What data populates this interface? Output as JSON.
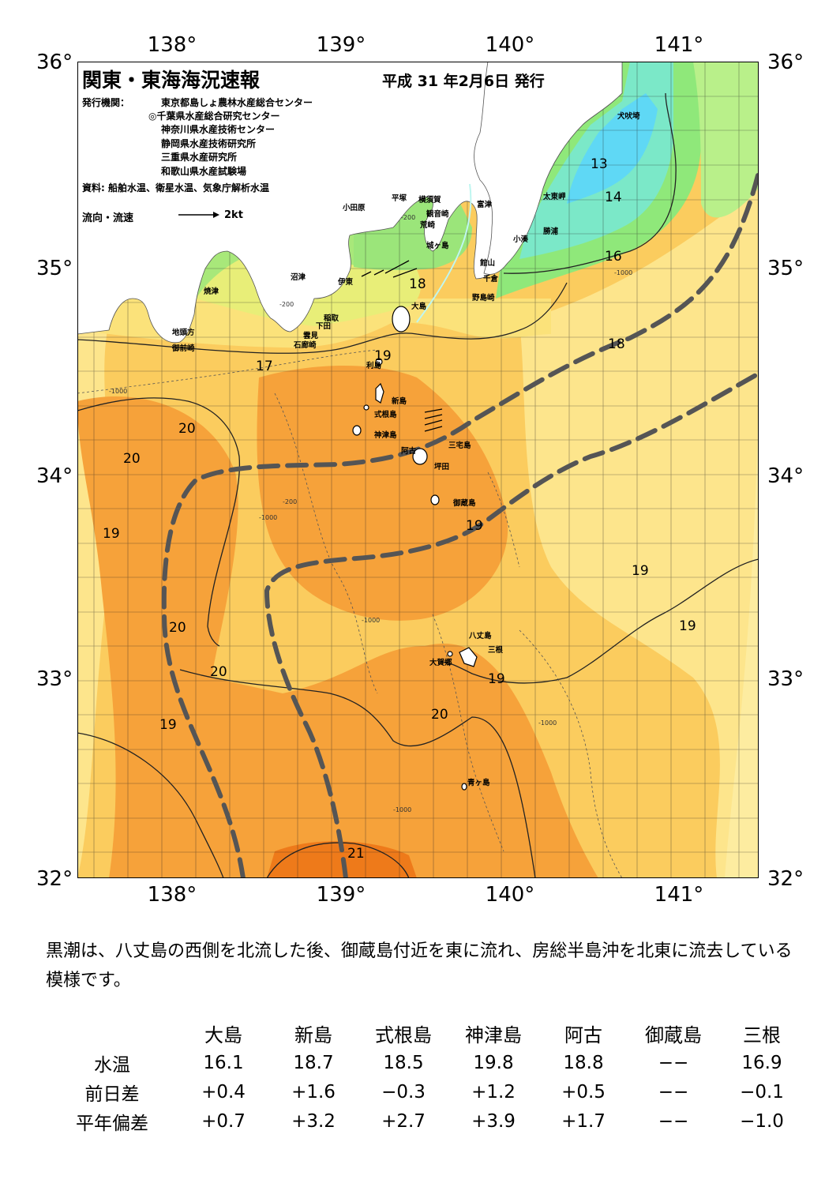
{
  "header": {
    "title": "関東・東海海況速報",
    "date": "平成 31 年2月6日 発行"
  },
  "publishers": {
    "label": "発行機関：",
    "items": [
      "東京都島しょ農林水産総合センター",
      "◎千葉県水産総合研究センター",
      "神奈川県水産技術センター",
      "静岡県水産技術研究所",
      "三重県水産研究所",
      "和歌山県水産試験場"
    ]
  },
  "source": "資料: 船舶水温、衛星水温、気象庁解析水温",
  "legend": {
    "flow_label": "流向・流速",
    "flow_unit": "2kt"
  },
  "axes": {
    "lon_labels": [
      "138°",
      "139°",
      "140°",
      "141°"
    ],
    "lat_labels": [
      "36°",
      "35°",
      "34°",
      "33°",
      "32°"
    ]
  },
  "place_names": [
    "犬吠埼",
    "太東岬",
    "勝浦",
    "小湊",
    "富津",
    "館山",
    "千倉",
    "野島崎",
    "横須賀",
    "観音崎",
    "荒崎",
    "城ヶ島",
    "平塚",
    "小田原",
    "沼津",
    "伊東",
    "焼津",
    "稲取",
    "下田",
    "雲見",
    "石廊崎",
    "地頭方",
    "御前崎",
    "大島",
    "利島",
    "新島",
    "式根島",
    "神津島",
    "三宅島",
    "阿古",
    "坪田",
    "御蔵島",
    "八丈島",
    "三根",
    "大賀郷",
    "青ヶ島"
  ],
  "isotherm_labels": [
    "13",
    "14",
    "16",
    "17",
    "18",
    "18",
    "19",
    "19",
    "19",
    "19",
    "19",
    "19",
    "19",
    "20",
    "20",
    "20",
    "20",
    "20",
    "21"
  ],
  "depth_labels": [
    "-200",
    "-1000"
  ],
  "summary": "黒潮は、八丈島の西側を北流した後、御蔵島付近を東に流れ、房総半島沖を北東に流去している模様です。",
  "table": {
    "stations": [
      "大島",
      "新島",
      "式根島",
      "神津島",
      "阿古",
      "御蔵島",
      "三根"
    ],
    "rows": [
      {
        "label": "水温",
        "values": [
          "16.1",
          "18.7",
          "18.5",
          "19.8",
          "18.8",
          "−−",
          "16.9"
        ]
      },
      {
        "label": "前日差",
        "values": [
          "+0.4",
          "+1.6",
          "−0.3",
          "+1.2",
          "+0.5",
          "−−",
          "−0.1"
        ]
      },
      {
        "label": "平年偏差",
        "values": [
          "+0.7",
          "+3.2",
          "+2.7",
          "+3.9",
          "+1.7",
          "−−",
          "−1.0"
        ]
      }
    ]
  },
  "colors": {
    "land": "#ffffff",
    "sst_13": "#5fd8f5",
    "sst_14": "#7be8c8",
    "sst_16": "#8fe87a",
    "sst_17": "#d8ef70",
    "sst_18": "#fbe27a",
    "sst_19": "#fbcc5e",
    "sst_20": "#f6a23a",
    "sst_21": "#ee7a1a",
    "kuroshio_axis": "#555555",
    "current_vector": "#000000"
  },
  "icons": {
    "flow_arrow": "arrow-right-icon",
    "island": "island-icon"
  }
}
